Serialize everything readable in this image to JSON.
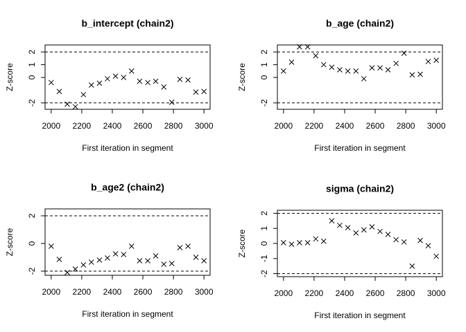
{
  "chart_data": [
    {
      "type": "scatter",
      "title": "b_intercept (chain2)",
      "x_label": "First iteration in segment",
      "y_label": "Z-score",
      "x": [
        2000,
        2053,
        2105,
        2158,
        2211,
        2263,
        2316,
        2368,
        2421,
        2474,
        2526,
        2579,
        2632,
        2684,
        2737,
        2789,
        2842,
        2895,
        2947,
        3000
      ],
      "values": [
        -0.4,
        -1.1,
        -2.1,
        -2.3,
        -1.35,
        -0.6,
        -0.45,
        -0.1,
        0.1,
        0,
        0.5,
        -0.3,
        -0.4,
        -0.3,
        -0.75,
        -1.95,
        -0.15,
        -0.2,
        -1.15,
        -1.1
      ],
      "xlim": [
        1960,
        3040
      ],
      "ylim": [
        -2.5,
        2.55
      ],
      "xticks": [
        2000,
        2200,
        2400,
        2600,
        2800,
        3000
      ],
      "yticks": [
        -2,
        0,
        1,
        2
      ],
      "hlines": [
        -2,
        2
      ],
      "color": "#000000"
    },
    {
      "type": "scatter",
      "title": "b_age (chain2)",
      "x_label": "First iteration in segment",
      "y_label": "Z-score",
      "x": [
        2000,
        2053,
        2105,
        2158,
        2211,
        2263,
        2316,
        2368,
        2421,
        2474,
        2526,
        2579,
        2632,
        2684,
        2737,
        2789,
        2842,
        2895,
        2947,
        3000
      ],
      "values": [
        0.5,
        1.2,
        2.4,
        2.4,
        1.7,
        1.0,
        0.8,
        0.6,
        0.5,
        0.5,
        -0.1,
        0.75,
        0.75,
        0.6,
        1.1,
        1.9,
        0.2,
        0.25,
        1.25,
        1.35
      ],
      "xlim": [
        1960,
        3040
      ],
      "ylim": [
        -2.5,
        2.55
      ],
      "xticks": [
        2000,
        2200,
        2400,
        2600,
        2800,
        3000
      ],
      "yticks": [
        -2,
        0,
        1,
        2
      ],
      "hlines": [
        -2,
        2
      ],
      "color": "#000000"
    },
    {
      "type": "scatter",
      "title": "b_age2 (chain2)",
      "x_label": "First iteration in segment",
      "y_label": "Z-score",
      "x": [
        2000,
        2053,
        2105,
        2158,
        2211,
        2263,
        2316,
        2368,
        2421,
        2474,
        2526,
        2579,
        2632,
        2684,
        2737,
        2789,
        2842,
        2895,
        2947,
        3000
      ],
      "values": [
        -0.2,
        -1.15,
        -2.1,
        -1.85,
        -1.55,
        -1.35,
        -1.2,
        -1.05,
        -0.75,
        -0.8,
        -0.2,
        -1.25,
        -1.25,
        -0.9,
        -1.5,
        -1.45,
        -0.3,
        -0.2,
        -1.0,
        -1.25
      ],
      "xlim": [
        1960,
        3040
      ],
      "ylim": [
        -2.3,
        2.5
      ],
      "xticks": [
        2000,
        2200,
        2400,
        2600,
        2800,
        3000
      ],
      "yticks": [
        -2,
        0,
        2
      ],
      "hlines": [
        -2,
        2
      ],
      "color": "#000000"
    },
    {
      "type": "scatter",
      "title": "sigma (chain2)",
      "x_label": "First iteration in segment",
      "y_label": "Z-score",
      "x": [
        2000,
        2053,
        2105,
        2158,
        2211,
        2263,
        2316,
        2368,
        2421,
        2474,
        2526,
        2579,
        2632,
        2684,
        2737,
        2789,
        2842,
        2895,
        2947,
        3000
      ],
      "values": [
        0.05,
        -0.05,
        0.05,
        0.05,
        0.3,
        0.15,
        1.5,
        1.2,
        1.05,
        0.7,
        0.9,
        1.1,
        0.8,
        0.6,
        0.25,
        0.1,
        -1.5,
        0.2,
        -0.15,
        -0.85
      ],
      "xlim": [
        1960,
        3040
      ],
      "ylim": [
        -2.2,
        2.2
      ],
      "xticks": [
        2000,
        2200,
        2400,
        2600,
        2800,
        3000
      ],
      "yticks": [
        -2,
        -1,
        0,
        1,
        2
      ],
      "hlines": [
        -2,
        2
      ],
      "color": "#000000"
    }
  ]
}
